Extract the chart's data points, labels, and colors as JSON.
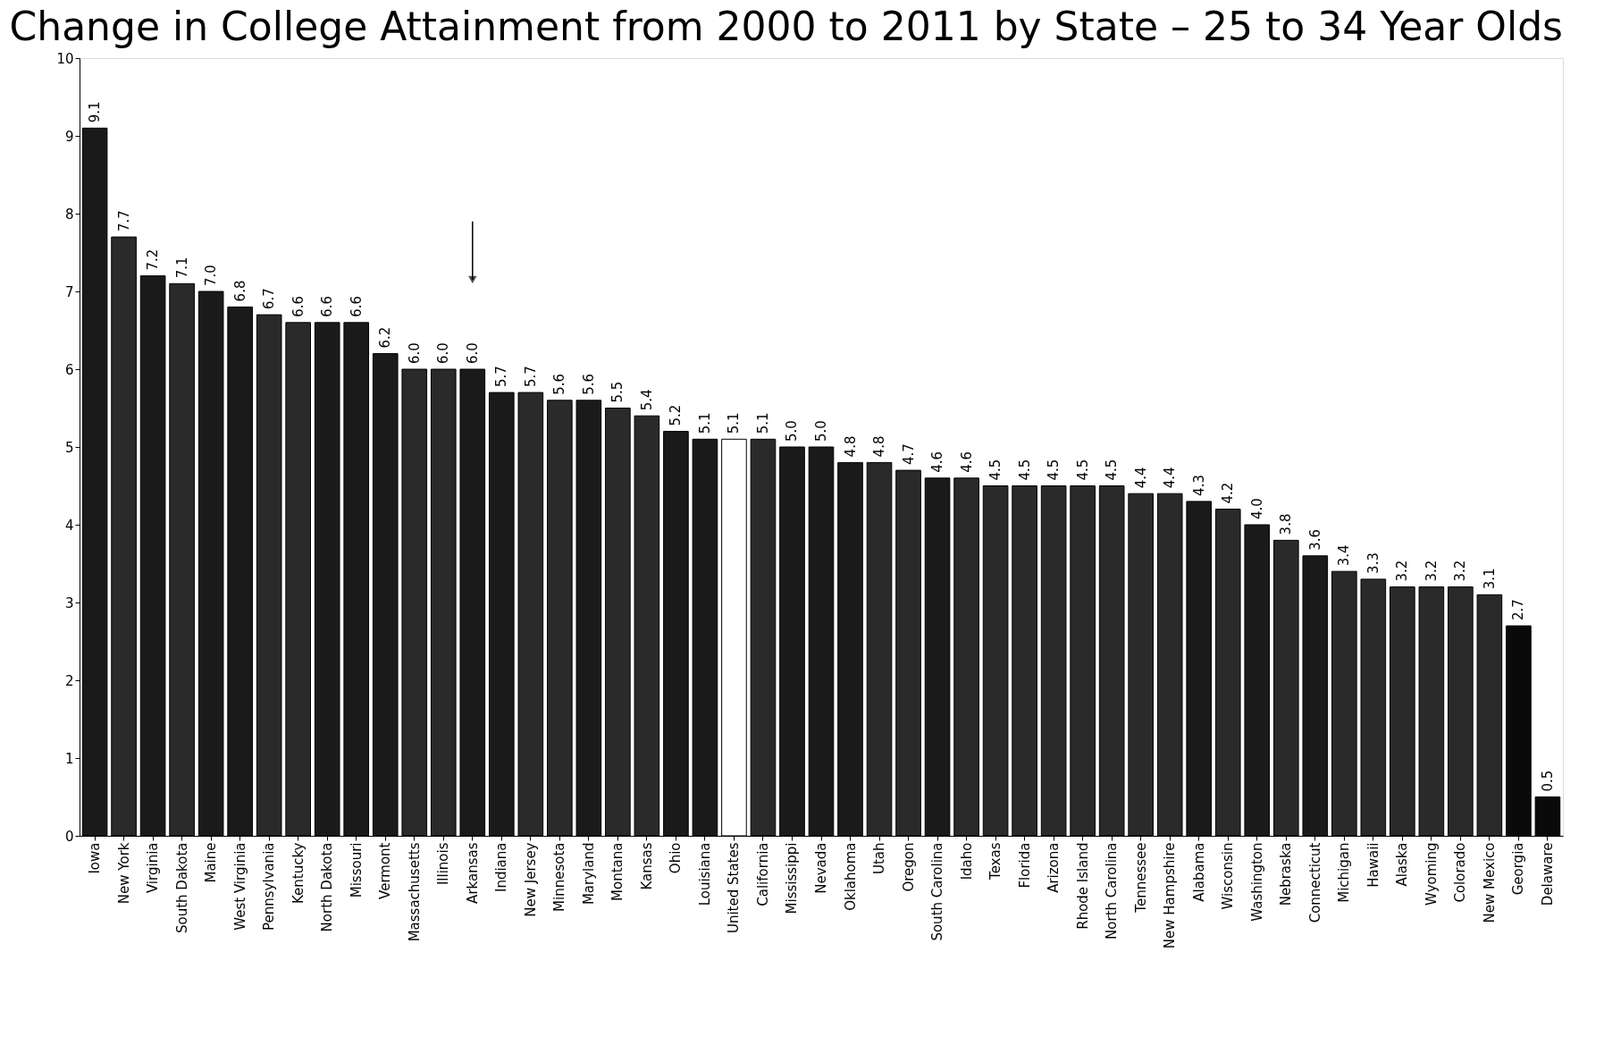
{
  "chart_data": {
    "type": "bar",
    "title": "Change in College Attainment from 2000 to 2011 by State – 25 to 34 Year Olds",
    "categories": [
      "Iowa",
      "New York",
      "Virginia",
      "South Dakota",
      "Maine",
      "West Virginia",
      "Pennsylvania",
      "Kentucky",
      "North Dakota",
      "Missouri",
      "Vermont",
      "Massachusetts",
      "Illinois",
      "Arkansas",
      "Indiana",
      "New Jersey",
      "Minnesota",
      "Maryland",
      "Montana",
      "Kansas",
      "Ohio",
      "Louisiana",
      "United States",
      "California",
      "Mississippi",
      "Nevada",
      "Oklahoma",
      "Utah",
      "Oregon",
      "South Carolina",
      "Idaho",
      "Texas",
      "Florida",
      "Arizona",
      "Rhode Island",
      "North Carolina",
      "Tennessee",
      "New Hampshire",
      "Alabama",
      "Wisconsin",
      "Washington",
      "Nebraska",
      "Connecticut",
      "Michigan",
      "Hawaii",
      "Alaska",
      "Wyoming",
      "Colorado",
      "New Mexico",
      "Georgia",
      "Delaware"
    ],
    "values": [
      9.1,
      7.7,
      7.2,
      7.1,
      7.0,
      6.8,
      6.7,
      6.6,
      6.6,
      6.6,
      6.2,
      6.0,
      6.0,
      6.0,
      5.7,
      5.7,
      5.6,
      5.6,
      5.5,
      5.4,
      5.2,
      5.1,
      5.1,
      5.1,
      5.0,
      5.0,
      4.8,
      4.8,
      4.7,
      4.6,
      4.6,
      4.5,
      4.5,
      4.5,
      4.5,
      4.5,
      4.4,
      4.4,
      4.3,
      4.2,
      4.0,
      3.8,
      3.6,
      3.4,
      3.3,
      3.2,
      3.2,
      3.2,
      3.1,
      2.7,
      0.5
    ],
    "colors": [
      "#1a1a1a",
      "#2a2a2a",
      "#1a1a1a",
      "#2a2a2a",
      "#1a1a1a",
      "#1a1a1a",
      "#2a2a2a",
      "#2a2a2a",
      "#1a1a1a",
      "#1a1a1a",
      "#1a1a1a",
      "#2a2a2a",
      "#2a2a2a",
      "#1a1a1a",
      "#1a1a1a",
      "#2a2a2a",
      "#2a2a2a",
      "#1a1a1a",
      "#2a2a2a",
      "#2a2a2a",
      "#1a1a1a",
      "#1a1a1a",
      "#ffffff",
      "#2a2a2a",
      "#1a1a1a",
      "#1a1a1a",
      "#1a1a1a",
      "#2a2a2a",
      "#2a2a2a",
      "#1a1a1a",
      "#2a2a2a",
      "#2a2a2a",
      "#2a2a2a",
      "#2a2a2a",
      "#2a2a2a",
      "#2a2a2a",
      "#2a2a2a",
      "#2a2a2a",
      "#1a1a1a",
      "#2a2a2a",
      "#1a1a1a",
      "#2a2a2a",
      "#1a1a1a",
      "#2a2a2a",
      "#2a2a2a",
      "#2a2a2a",
      "#2a2a2a",
      "#2a2a2a",
      "#2a2a2a",
      "#0a0a0a",
      "#0a0a0a"
    ],
    "value_labels": [
      "9.1",
      "7.7",
      "7.2",
      "7.1",
      "7.0",
      "6.8",
      "6.7",
      "6.6",
      "6.6",
      "6.6",
      "6.2",
      "6.0",
      "6.0",
      "6.0",
      "5.7",
      "5.7",
      "5.6",
      "5.6",
      "5.5",
      "5.4",
      "5.2",
      "5.1",
      "5.1",
      "5.1",
      "5.0",
      "5.0",
      "4.8",
      "4.8",
      "4.7",
      "4.6",
      "4.6",
      "4.5",
      "4.5",
      "4.5",
      "4.5",
      "4.5",
      "4.4",
      "4.4",
      "4.3",
      "4.2",
      "4.0",
      "3.8",
      "3.6",
      "3.4",
      "3.3",
      "3.2",
      "3.2",
      "3.2",
      "3.1",
      "2.7",
      "0.5"
    ],
    "ylim": [
      0,
      10
    ],
    "yticks": [
      0,
      1,
      2,
      3,
      4,
      5,
      6,
      7,
      8,
      9,
      10
    ],
    "grid": false
  }
}
